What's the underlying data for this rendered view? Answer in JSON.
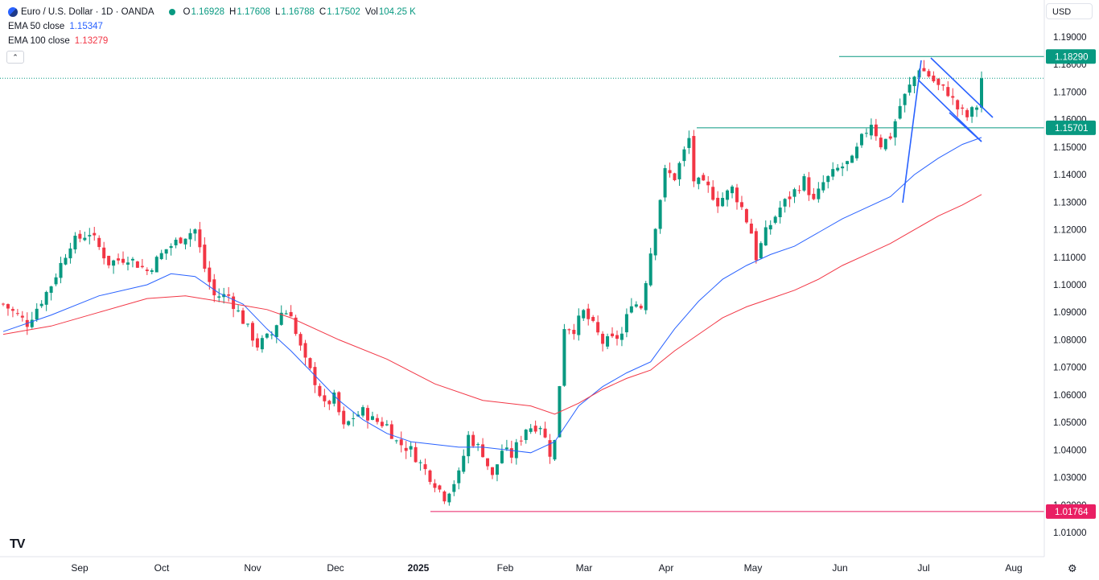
{
  "header": {
    "symbol": "Euro / U.S. Dollar · 1D · OANDA",
    "o_label": "O",
    "o_value": "1.16928",
    "h_label": "H",
    "h_value": "1.17608",
    "l_label": "L",
    "l_value": "1.16788",
    "c_label": "C",
    "c_value": "1.17502",
    "vol_label": "Vol",
    "vol_value": "104.25 K",
    "ema50_label": "EMA 50 close",
    "ema50_value": "1.15347",
    "ema100_label": "EMA 100 close",
    "ema100_value": "1.13279",
    "collapse_icon": "chevron-up-icon",
    "currency": "USD"
  },
  "colors": {
    "up": "#089981",
    "down": "#f23645",
    "ema50": "#2962ff",
    "ema100": "#f23645",
    "level": "#089981",
    "low_level": "#e91e63",
    "pattern": "#2962ff"
  },
  "chart_data": {
    "type": "candlestick",
    "title": "Euro / U.S. Dollar · 1D · OANDA",
    "ylim": [
      1.005,
      1.195
    ],
    "y_ticks": [
      "1.19000",
      "1.18000",
      "1.17000",
      "1.16000",
      "1.15000",
      "1.14000",
      "1.13000",
      "1.12000",
      "1.11000",
      "1.10000",
      "1.09000",
      "1.08000",
      "1.07000",
      "1.06000",
      "1.05000",
      "1.04000",
      "1.03000",
      "1.02000",
      "1.01000"
    ],
    "x_labels": [
      "Sep",
      "Oct",
      "Nov",
      "Dec",
      "2025",
      "Feb",
      "Mar",
      "Apr",
      "May",
      "Jun",
      "Jul",
      "Aug"
    ],
    "price_labels": [
      {
        "text": "1.18290",
        "value": 1.1829,
        "color": "#089981"
      },
      {
        "text": "1.15701",
        "value": 1.15701,
        "color": "#089981"
      },
      {
        "text": "1.01764",
        "value": 1.01764,
        "color": "#e91e63"
      }
    ],
    "last_price": 1.17502,
    "close_path": [
      [
        0,
        1.093
      ],
      [
        5,
        1.086
      ],
      [
        10,
        1.1
      ],
      [
        14,
        1.115
      ],
      [
        18,
        1.119
      ],
      [
        22,
        1.108
      ],
      [
        26,
        1.11
      ],
      [
        30,
        1.105
      ],
      [
        34,
        1.113
      ],
      [
        38,
        1.118
      ],
      [
        40,
        1.12
      ],
      [
        42,
        1.106
      ],
      [
        44,
        1.096
      ],
      [
        47,
        1.096
      ],
      [
        50,
        1.087
      ],
      [
        53,
        1.078
      ],
      [
        56,
        1.082
      ],
      [
        58,
        1.09
      ],
      [
        60,
        1.09
      ],
      [
        61,
        1.082
      ],
      [
        63,
        1.072
      ],
      [
        65,
        1.065
      ],
      [
        67,
        1.056
      ],
      [
        69,
        1.059
      ],
      [
        71,
        1.048
      ],
      [
        73,
        1.052
      ],
      [
        75,
        1.054
      ],
      [
        77,
        1.051
      ],
      [
        80,
        1.049
      ],
      [
        82,
        1.043
      ],
      [
        85,
        1.04
      ],
      [
        87,
        1.035
      ],
      [
        90,
        1.028
      ],
      [
        92,
        1.023
      ],
      [
        95,
        1.031
      ],
      [
        97,
        1.045
      ],
      [
        100,
        1.039
      ],
      [
        102,
        1.03
      ],
      [
        104,
        1.04
      ],
      [
        106,
        1.038
      ],
      [
        109,
        1.048
      ],
      [
        112,
        1.049
      ],
      [
        114,
        1.039
      ],
      [
        115,
        1.043
      ],
      [
        117,
        1.085
      ],
      [
        119,
        1.084
      ],
      [
        121,
        1.09
      ],
      [
        123,
        1.085
      ],
      [
        125,
        1.079
      ],
      [
        127,
        1.08
      ],
      [
        129,
        1.082
      ],
      [
        131,
        1.094
      ],
      [
        133,
        1.092
      ],
      [
        136,
        1.122
      ],
      [
        138,
        1.141
      ],
      [
        140,
        1.139
      ],
      [
        143,
        1.153
      ],
      [
        144,
        1.138
      ],
      [
        147,
        1.135
      ],
      [
        149,
        1.13
      ],
      [
        152,
        1.135
      ],
      [
        154,
        1.128
      ],
      [
        156,
        1.119
      ],
      [
        157,
        1.11
      ],
      [
        159,
        1.119
      ],
      [
        162,
        1.128
      ],
      [
        165,
        1.134
      ],
      [
        167,
        1.138
      ],
      [
        169,
        1.13
      ],
      [
        171,
        1.137
      ],
      [
        174,
        1.142
      ],
      [
        177,
        1.145
      ],
      [
        179,
        1.153
      ],
      [
        181,
        1.159
      ],
      [
        183,
        1.151
      ],
      [
        185,
        1.154
      ],
      [
        187,
        1.165
      ],
      [
        189,
        1.172
      ],
      [
        191,
        1.179
      ],
      [
        193,
        1.176
      ],
      [
        195,
        1.172
      ],
      [
        197,
        1.17
      ],
      [
        199,
        1.164
      ],
      [
        201,
        1.161
      ],
      [
        203,
        1.165
      ],
      [
        204,
        1.175
      ]
    ],
    "series": [
      {
        "name": "EMA 50 close",
        "points": [
          [
            0,
            1.083
          ],
          [
            10,
            1.089
          ],
          [
            20,
            1.096
          ],
          [
            30,
            1.1
          ],
          [
            35,
            1.104
          ],
          [
            40,
            1.103
          ],
          [
            45,
            1.097
          ],
          [
            50,
            1.093
          ],
          [
            55,
            1.084
          ],
          [
            60,
            1.076
          ],
          [
            65,
            1.067
          ],
          [
            70,
            1.058
          ],
          [
            75,
            1.051
          ],
          [
            80,
            1.046
          ],
          [
            85,
            1.043
          ],
          [
            90,
            1.042
          ],
          [
            95,
            1.041
          ],
          [
            100,
            1.041
          ],
          [
            105,
            1.04
          ],
          [
            110,
            1.039
          ],
          [
            115,
            1.043
          ],
          [
            120,
            1.056
          ],
          [
            125,
            1.063
          ],
          [
            130,
            1.068
          ],
          [
            135,
            1.072
          ],
          [
            140,
            1.084
          ],
          [
            145,
            1.094
          ],
          [
            150,
            1.102
          ],
          [
            155,
            1.107
          ],
          [
            160,
            1.111
          ],
          [
            165,
            1.114
          ],
          [
            170,
            1.119
          ],
          [
            175,
            1.124
          ],
          [
            180,
            1.128
          ],
          [
            185,
            1.132
          ],
          [
            190,
            1.14
          ],
          [
            195,
            1.146
          ],
          [
            200,
            1.151
          ],
          [
            204,
            1.1535
          ]
        ]
      },
      {
        "name": "EMA 100 close",
        "points": [
          [
            0,
            1.082
          ],
          [
            10,
            1.085
          ],
          [
            20,
            1.09
          ],
          [
            30,
            1.095
          ],
          [
            38,
            1.096
          ],
          [
            45,
            1.094
          ],
          [
            55,
            1.091
          ],
          [
            60,
            1.088
          ],
          [
            70,
            1.08
          ],
          [
            80,
            1.073
          ],
          [
            90,
            1.064
          ],
          [
            100,
            1.058
          ],
          [
            110,
            1.056
          ],
          [
            115,
            1.053
          ],
          [
            120,
            1.057
          ],
          [
            125,
            1.062
          ],
          [
            130,
            1.066
          ],
          [
            135,
            1.069
          ],
          [
            140,
            1.076
          ],
          [
            145,
            1.082
          ],
          [
            150,
            1.088
          ],
          [
            155,
            1.092
          ],
          [
            160,
            1.095
          ],
          [
            165,
            1.098
          ],
          [
            170,
            1.102
          ],
          [
            175,
            1.107
          ],
          [
            180,
            1.111
          ],
          [
            185,
            1.115
          ],
          [
            190,
            1.12
          ],
          [
            195,
            1.125
          ],
          [
            200,
            1.129
          ],
          [
            204,
            1.1328
          ]
        ]
      }
    ],
    "levels": [
      1.1829,
      1.15701,
      1.01764
    ],
    "grid": false,
    "legend": "top-left"
  },
  "footer": {
    "logo": "TV",
    "settings_icon": "gear-icon"
  }
}
